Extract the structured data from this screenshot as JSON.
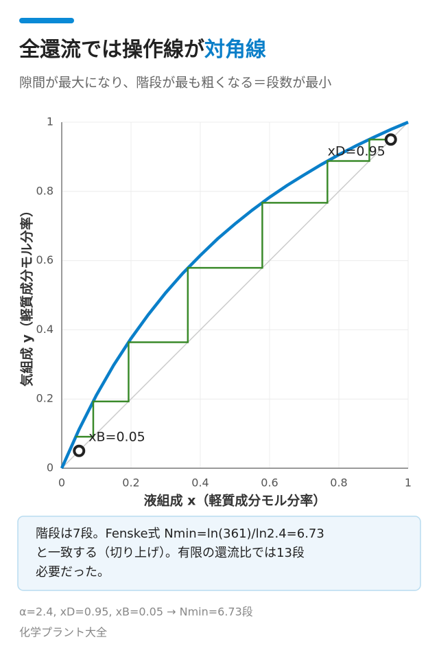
{
  "header": {
    "title": [
      "全還流では操作線が",
      "対角線"
    ],
    "subtitle": "隙間が最大になり、階段が最も粗くなる＝段数が最小"
  },
  "chart_data": {
    "type": "line",
    "xlabel": "液組成 x（軽質成分モル分率）",
    "ylabel": "気組成 y（軽質成分モル分率）",
    "xlim": [
      0,
      1
    ],
    "ylim": [
      0,
      1
    ],
    "xticks": [
      0,
      0.2,
      0.4,
      0.6,
      0.8,
      1
    ],
    "yticks": [
      0,
      0.2,
      0.4,
      0.6,
      0.8,
      1
    ],
    "grid": true,
    "series": [
      {
        "color": "#cccccc",
        "style": "thin",
        "x": [
          0,
          1
        ],
        "values": [
          0,
          1
        ]
      },
      {
        "color": "#0a7fc9",
        "style": "thick",
        "x": [
          0,
          0.05,
          0.1,
          0.15,
          0.2,
          0.25,
          0.3,
          0.35,
          0.4,
          0.45,
          0.5,
          0.55,
          0.6,
          0.65,
          0.7,
          0.75,
          0.8,
          0.85,
          0.9,
          0.95,
          1
        ],
        "values": [
          0,
          0.112,
          0.211,
          0.298,
          0.375,
          0.444,
          0.507,
          0.564,
          0.615,
          0.663,
          0.706,
          0.746,
          0.783,
          0.817,
          0.848,
          0.878,
          0.906,
          0.932,
          0.956,
          0.979,
          1
        ]
      },
      {
        "color": "#3a8a2a",
        "style": "step",
        "x": [
          0.95,
          0.888,
          0.888,
          0.767,
          0.767,
          0.579,
          0.579,
          0.364,
          0.364,
          0.193,
          0.193,
          0.091,
          0.091,
          0.04
        ],
        "values": [
          0.95,
          0.95,
          0.888,
          0.888,
          0.767,
          0.767,
          0.579,
          0.579,
          0.364,
          0.364,
          0.193,
          0.193,
          0.091,
          0.091
        ]
      },
      {
        "color": "#222222",
        "style": "marker",
        "x": [
          0.95,
          0.05
        ],
        "values": [
          0.95,
          0.05
        ]
      }
    ],
    "annotations": [
      "xD=0.95",
      "xB=0.05"
    ]
  },
  "note": [
    "階段は7段。Fenske式 Nmin=ln(361)/ln2.4=6.73",
    "と一致する（切り上げ）。有限の還流比では13段",
    "必要だった。"
  ],
  "footer": [
    "α=2.4, xD=0.95, xB=0.05 → Nmin=6.73段",
    "化学プラント大全"
  ]
}
